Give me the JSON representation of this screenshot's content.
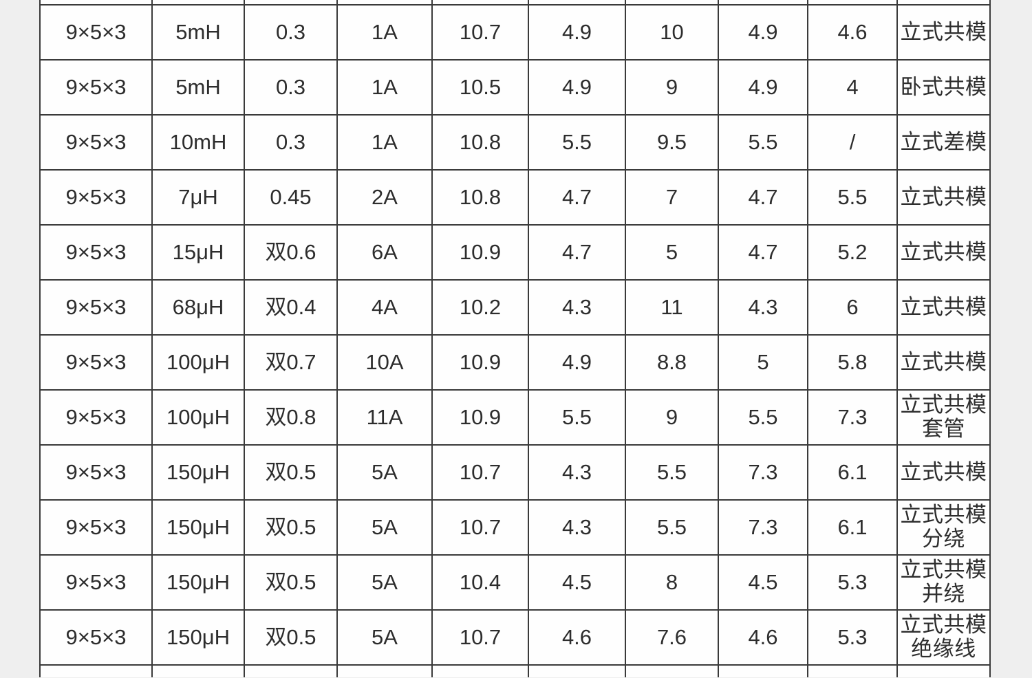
{
  "colors": {
    "page_background": "#efefef",
    "cell_background": "#fefefe",
    "grid_border": "#3a3a3a",
    "text": "#2d2d2d"
  },
  "chart_data": {
    "type": "table",
    "layout_hints": {
      "visible_columns": 10,
      "visible_full_rows": 12,
      "clipped_row_top": true,
      "clipped_row_bottom": true,
      "grid": "on"
    },
    "rows": [
      [
        "9×5×3",
        "5mH",
        "0.3",
        "1A",
        "10.7",
        "4.9",
        "10",
        "4.9",
        "4.6",
        "立式共模"
      ],
      [
        "9×5×3",
        "5mH",
        "0.3",
        "1A",
        "10.5",
        "4.9",
        "9",
        "4.9",
        "4",
        "卧式共模"
      ],
      [
        "9×5×3",
        "10mH",
        "0.3",
        "1A",
        "10.8",
        "5.5",
        "9.5",
        "5.5",
        "/",
        "立式差模"
      ],
      [
        "9×5×3",
        "7μH",
        "0.45",
        "2A",
        "10.8",
        "4.7",
        "7",
        "4.7",
        "5.5",
        "立式共模"
      ],
      [
        "9×5×3",
        "15μH",
        "双0.6",
        "6A",
        "10.9",
        "4.7",
        "5",
        "4.7",
        "5.2",
        "立式共模"
      ],
      [
        "9×5×3",
        "68μH",
        "双0.4",
        "4A",
        "10.2",
        "4.3",
        "11",
        "4.3",
        "6",
        "立式共模"
      ],
      [
        "9×5×3",
        "100μH",
        "双0.7",
        "10A",
        "10.9",
        "4.9",
        "8.8",
        "5",
        "5.8",
        "立式共模"
      ],
      [
        "9×5×3",
        "100μH",
        "双0.8",
        "11A",
        "10.9",
        "5.5",
        "9",
        "5.5",
        "7.3",
        "立式共模\n套管"
      ],
      [
        "9×5×3",
        "150μH",
        "双0.5",
        "5A",
        "10.7",
        "4.3",
        "5.5",
        "7.3",
        "6.1",
        "立式共模"
      ],
      [
        "9×5×3",
        "150μH",
        "双0.5",
        "5A",
        "10.7",
        "4.3",
        "5.5",
        "7.3",
        "6.1",
        "立式共模\n分绕"
      ],
      [
        "9×5×3",
        "150μH",
        "双0.5",
        "5A",
        "10.4",
        "4.5",
        "8",
        "4.5",
        "5.3",
        "立式共模\n并绕"
      ],
      [
        "9×5×3",
        "150μH",
        "双0.5",
        "5A",
        "10.7",
        "4.6",
        "7.6",
        "4.6",
        "5.3",
        "立式共模\n绝缘线"
      ]
    ]
  }
}
